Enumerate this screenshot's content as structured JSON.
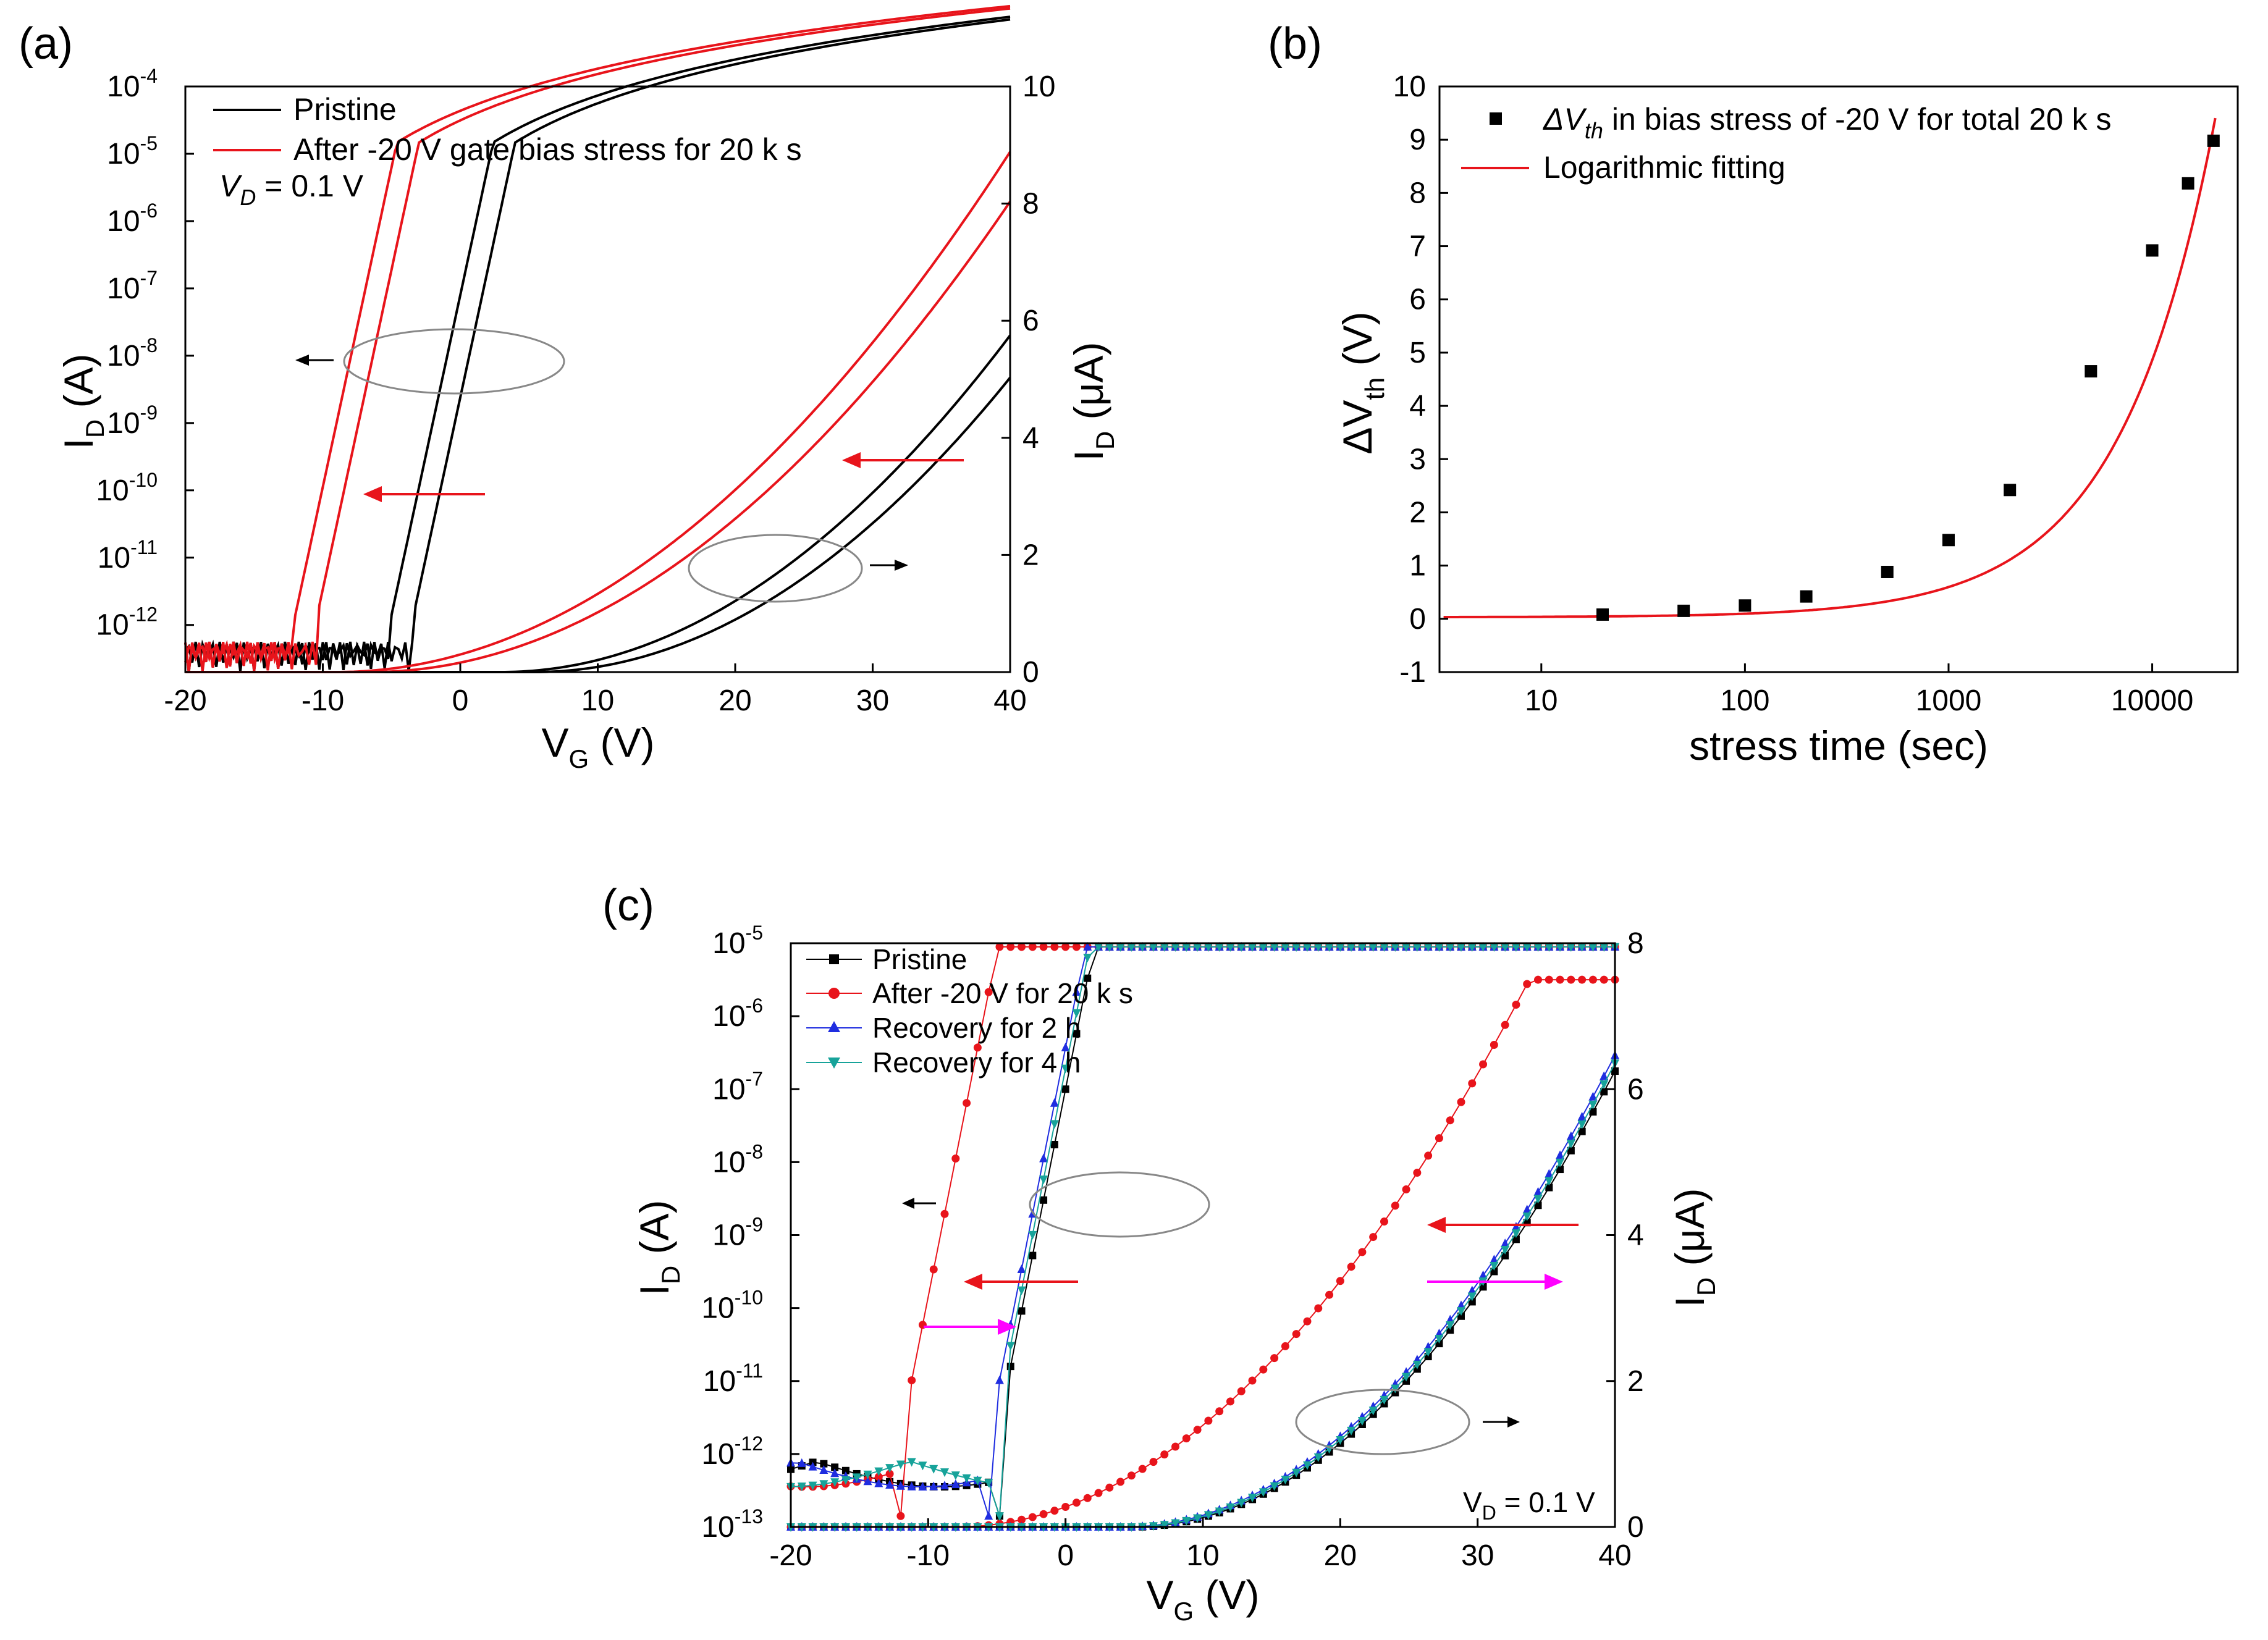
{
  "chart_data": [
    {
      "panel_label": "(a)",
      "type": "line",
      "xlabel_main": "V",
      "xlabel_sub": "G",
      "xlabel_unit": " (V)",
      "ylabel_left_main": "I",
      "ylabel_left_sub": "D",
      "ylabel_left_unit": " (A)",
      "ylabel_right_main": "I",
      "ylabel_right_sub": "D",
      "ylabel_right_unit": " (μA)",
      "x_ticks": [
        "-20",
        "-10",
        "0",
        "10",
        "20",
        "30",
        "40"
      ],
      "y_left_ticks": [
        "-4",
        "-5",
        "-6",
        "-7",
        "-8",
        "-9",
        "-10",
        "-11",
        "-12"
      ],
      "y_left_tick_base": "10",
      "y_right_ticks": [
        "10",
        "8",
        "6",
        "4",
        "2",
        "0"
      ],
      "xlim": [
        -20,
        40
      ],
      "y_left_log_range": [
        -12.7,
        -4
      ],
      "y_right_range": [
        0,
        10
      ],
      "legend": [
        "Pristine",
        "After -20 V gate bias stress for 20 k s"
      ],
      "annotation_prefix": "V",
      "annotation_sub": "D",
      "annotation_value": " = 0.1 V",
      "series": [
        {
          "name": "Pristine",
          "color": "#000000",
          "vth": 0
        },
        {
          "name": "After -20 V gate bias stress for 20 k s",
          "color": "#e8141b",
          "vth": -7
        }
      ]
    },
    {
      "panel_label": "(b)",
      "type": "scatter",
      "xlabel": "stress time (sec)",
      "ylabel_main": "ΔV",
      "ylabel_sub": "th",
      "ylabel_unit": " (V)",
      "x_ticks": [
        "10",
        "100",
        "1000",
        "10000"
      ],
      "y_ticks": [
        "10",
        "9",
        "8",
        "7",
        "6",
        "5",
        "4",
        "3",
        "2",
        "1",
        "0",
        "-1"
      ],
      "xlim_log": [
        0.5,
        4.42
      ],
      "ylim": [
        -1,
        10
      ],
      "legend_marker_prefix": "ΔV",
      "legend_marker_sub": "th",
      "legend_marker_rest": " in bias stress of -20 V for total 20 k s",
      "legend_line": "Logarithmic fitting",
      "points": [
        {
          "x": 20,
          "y": 0.08
        },
        {
          "x": 50,
          "y": 0.15
        },
        {
          "x": 100,
          "y": 0.25
        },
        {
          "x": 200,
          "y": 0.42
        },
        {
          "x": 500,
          "y": 0.88
        },
        {
          "x": 1000,
          "y": 1.48
        },
        {
          "x": 2000,
          "y": 2.42
        },
        {
          "x": 5000,
          "y": 4.65
        },
        {
          "x": 10000,
          "y": 6.92
        },
        {
          "x": 15000,
          "y": 8.18
        },
        {
          "x": 20000,
          "y": 8.98
        }
      ]
    },
    {
      "panel_label": "(c)",
      "type": "line",
      "xlabel_main": "V",
      "xlabel_sub": "G",
      "xlabel_unit": " (V)",
      "ylabel_left_main": "I",
      "ylabel_left_sub": "D",
      "ylabel_left_unit": " (A)",
      "ylabel_right_main": "I",
      "ylabel_right_sub": "D",
      "ylabel_right_unit": " (μA)",
      "x_ticks": [
        "-20",
        "-10",
        "0",
        "10",
        "20",
        "30",
        "40"
      ],
      "y_left_ticks": [
        "-5",
        "-6",
        "-7",
        "-8",
        "-9",
        "-10",
        "-11",
        "-12",
        "-13"
      ],
      "y_left_tick_base": "10",
      "y_right_ticks": [
        "8",
        "6",
        "4",
        "2",
        "0"
      ],
      "xlim": [
        -20,
        40
      ],
      "y_left_log_range": [
        -13,
        -5
      ],
      "y_right_range": [
        0,
        8
      ],
      "legend": [
        "Pristine",
        "After -20 V for 20 k s",
        "Recovery for 2 h",
        "Recovery for 4 h"
      ],
      "annotation_prefix": "V",
      "annotation_sub": "D",
      "annotation_value": " = 0.1 V",
      "series": [
        {
          "name": "Pristine",
          "color": "#000000",
          "marker": "square",
          "vth": 0
        },
        {
          "name": "After -20 V for 20 k s",
          "color": "#e8141b",
          "marker": "circle",
          "vth": -7
        },
        {
          "name": "Recovery for 2 h",
          "color": "#1f2de0",
          "marker": "triangle-up",
          "vth": -0.6
        },
        {
          "name": "Recovery for 4 h",
          "color": "#17a39a",
          "marker": "triangle-down",
          "vth": -0.3
        }
      ]
    }
  ]
}
